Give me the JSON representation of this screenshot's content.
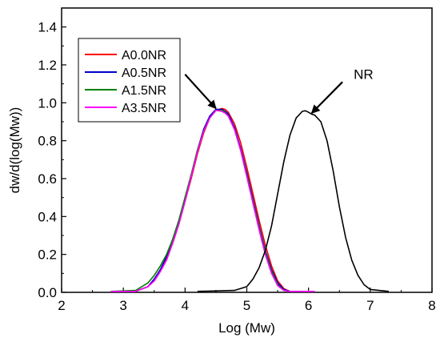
{
  "chart_data": {
    "type": "line",
    "title": "",
    "xlabel": "Log (Mw)",
    "ylabel": "dw/d(log(Mw))",
    "xlim": [
      2,
      8
    ],
    "ylim": [
      0,
      1.5
    ],
    "x_ticks": [
      "2",
      "3",
      "4",
      "5",
      "6",
      "7",
      "8"
    ],
    "y_ticks": [
      "0.0",
      "0.2",
      "0.4",
      "0.6",
      "0.8",
      "1.0",
      "1.2",
      "1.4"
    ],
    "grid": false,
    "legend_position": "top-left",
    "series": [
      {
        "name": "A0.0NR",
        "color": "#ff0000",
        "x": [
          2.8,
          3.2,
          3.4,
          3.5,
          3.6,
          3.7,
          3.8,
          3.9,
          4.0,
          4.1,
          4.2,
          4.3,
          4.4,
          4.5,
          4.6,
          4.65,
          4.7,
          4.8,
          4.9,
          5.0,
          5.1,
          5.2,
          5.3,
          5.4,
          5.5,
          5.6,
          5.7,
          6.1
        ],
        "y": [
          0.005,
          0.005,
          0.03,
          0.07,
          0.12,
          0.18,
          0.26,
          0.36,
          0.48,
          0.6,
          0.73,
          0.84,
          0.92,
          0.96,
          0.97,
          0.965,
          0.95,
          0.89,
          0.79,
          0.66,
          0.52,
          0.38,
          0.25,
          0.14,
          0.06,
          0.02,
          0.005,
          0.005
        ]
      },
      {
        "name": "A0.5NR",
        "color": "#0000cc",
        "x": [
          2.8,
          3.2,
          3.4,
          3.5,
          3.6,
          3.7,
          3.8,
          3.9,
          4.0,
          4.1,
          4.2,
          4.3,
          4.4,
          4.5,
          4.6,
          4.65,
          4.7,
          4.8,
          4.9,
          5.0,
          5.1,
          5.2,
          5.3,
          5.4,
          5.5,
          5.6,
          5.7,
          6.1
        ],
        "y": [
          0.005,
          0.005,
          0.03,
          0.07,
          0.12,
          0.19,
          0.28,
          0.38,
          0.5,
          0.62,
          0.75,
          0.86,
          0.93,
          0.965,
          0.965,
          0.955,
          0.94,
          0.87,
          0.76,
          0.63,
          0.49,
          0.35,
          0.22,
          0.12,
          0.05,
          0.015,
          0.005,
          0.005
        ]
      },
      {
        "name": "A1.5NR",
        "color": "#008000",
        "x": [
          2.8,
          3.2,
          3.4,
          3.5,
          3.6,
          3.7,
          3.8,
          3.9,
          4.0,
          4.1,
          4.2,
          4.3,
          4.4,
          4.5,
          4.6,
          4.65,
          4.7,
          4.8,
          4.9,
          5.0,
          5.1,
          5.2,
          5.3,
          5.4,
          5.5,
          5.6,
          5.7,
          6.1
        ],
        "y": [
          0.005,
          0.01,
          0.05,
          0.09,
          0.14,
          0.2,
          0.28,
          0.38,
          0.5,
          0.62,
          0.75,
          0.85,
          0.92,
          0.96,
          0.96,
          0.95,
          0.93,
          0.86,
          0.75,
          0.62,
          0.48,
          0.34,
          0.21,
          0.11,
          0.04,
          0.01,
          0.005,
          0.005
        ]
      },
      {
        "name": "A3.5NR",
        "color": "#ff00ff",
        "x": [
          2.8,
          3.2,
          3.4,
          3.5,
          3.6,
          3.7,
          3.8,
          3.9,
          4.0,
          4.1,
          4.2,
          4.3,
          4.4,
          4.5,
          4.6,
          4.65,
          4.7,
          4.8,
          4.9,
          5.0,
          5.1,
          5.2,
          5.3,
          5.4,
          5.5,
          5.6,
          5.7,
          6.1
        ],
        "y": [
          0.005,
          0.005,
          0.03,
          0.06,
          0.11,
          0.17,
          0.26,
          0.36,
          0.48,
          0.61,
          0.74,
          0.85,
          0.92,
          0.96,
          0.955,
          0.945,
          0.93,
          0.86,
          0.75,
          0.61,
          0.47,
          0.33,
          0.2,
          0.1,
          0.035,
          0.01,
          0.005,
          0.005
        ]
      },
      {
        "name": "NR",
        "color": "#000000",
        "x": [
          4.2,
          4.8,
          5.0,
          5.1,
          5.2,
          5.3,
          5.4,
          5.5,
          5.6,
          5.7,
          5.8,
          5.9,
          5.95,
          6.0,
          6.05,
          6.1,
          6.2,
          6.3,
          6.4,
          6.5,
          6.6,
          6.7,
          6.8,
          6.9,
          7.0,
          7.3
        ],
        "y": [
          0.005,
          0.01,
          0.03,
          0.07,
          0.13,
          0.22,
          0.35,
          0.52,
          0.69,
          0.83,
          0.92,
          0.955,
          0.958,
          0.95,
          0.94,
          0.935,
          0.9,
          0.8,
          0.64,
          0.45,
          0.29,
          0.17,
          0.09,
          0.04,
          0.015,
          0.005
        ]
      }
    ],
    "annotations": [
      {
        "text": "NR",
        "target": [
          6.05,
          0.945
        ],
        "label_position": [
          6.55,
          1.11
        ]
      },
      {
        "text": "",
        "target": [
          4.5,
          0.97
        ],
        "label_position": [
          4.0,
          1.15
        ]
      }
    ]
  }
}
